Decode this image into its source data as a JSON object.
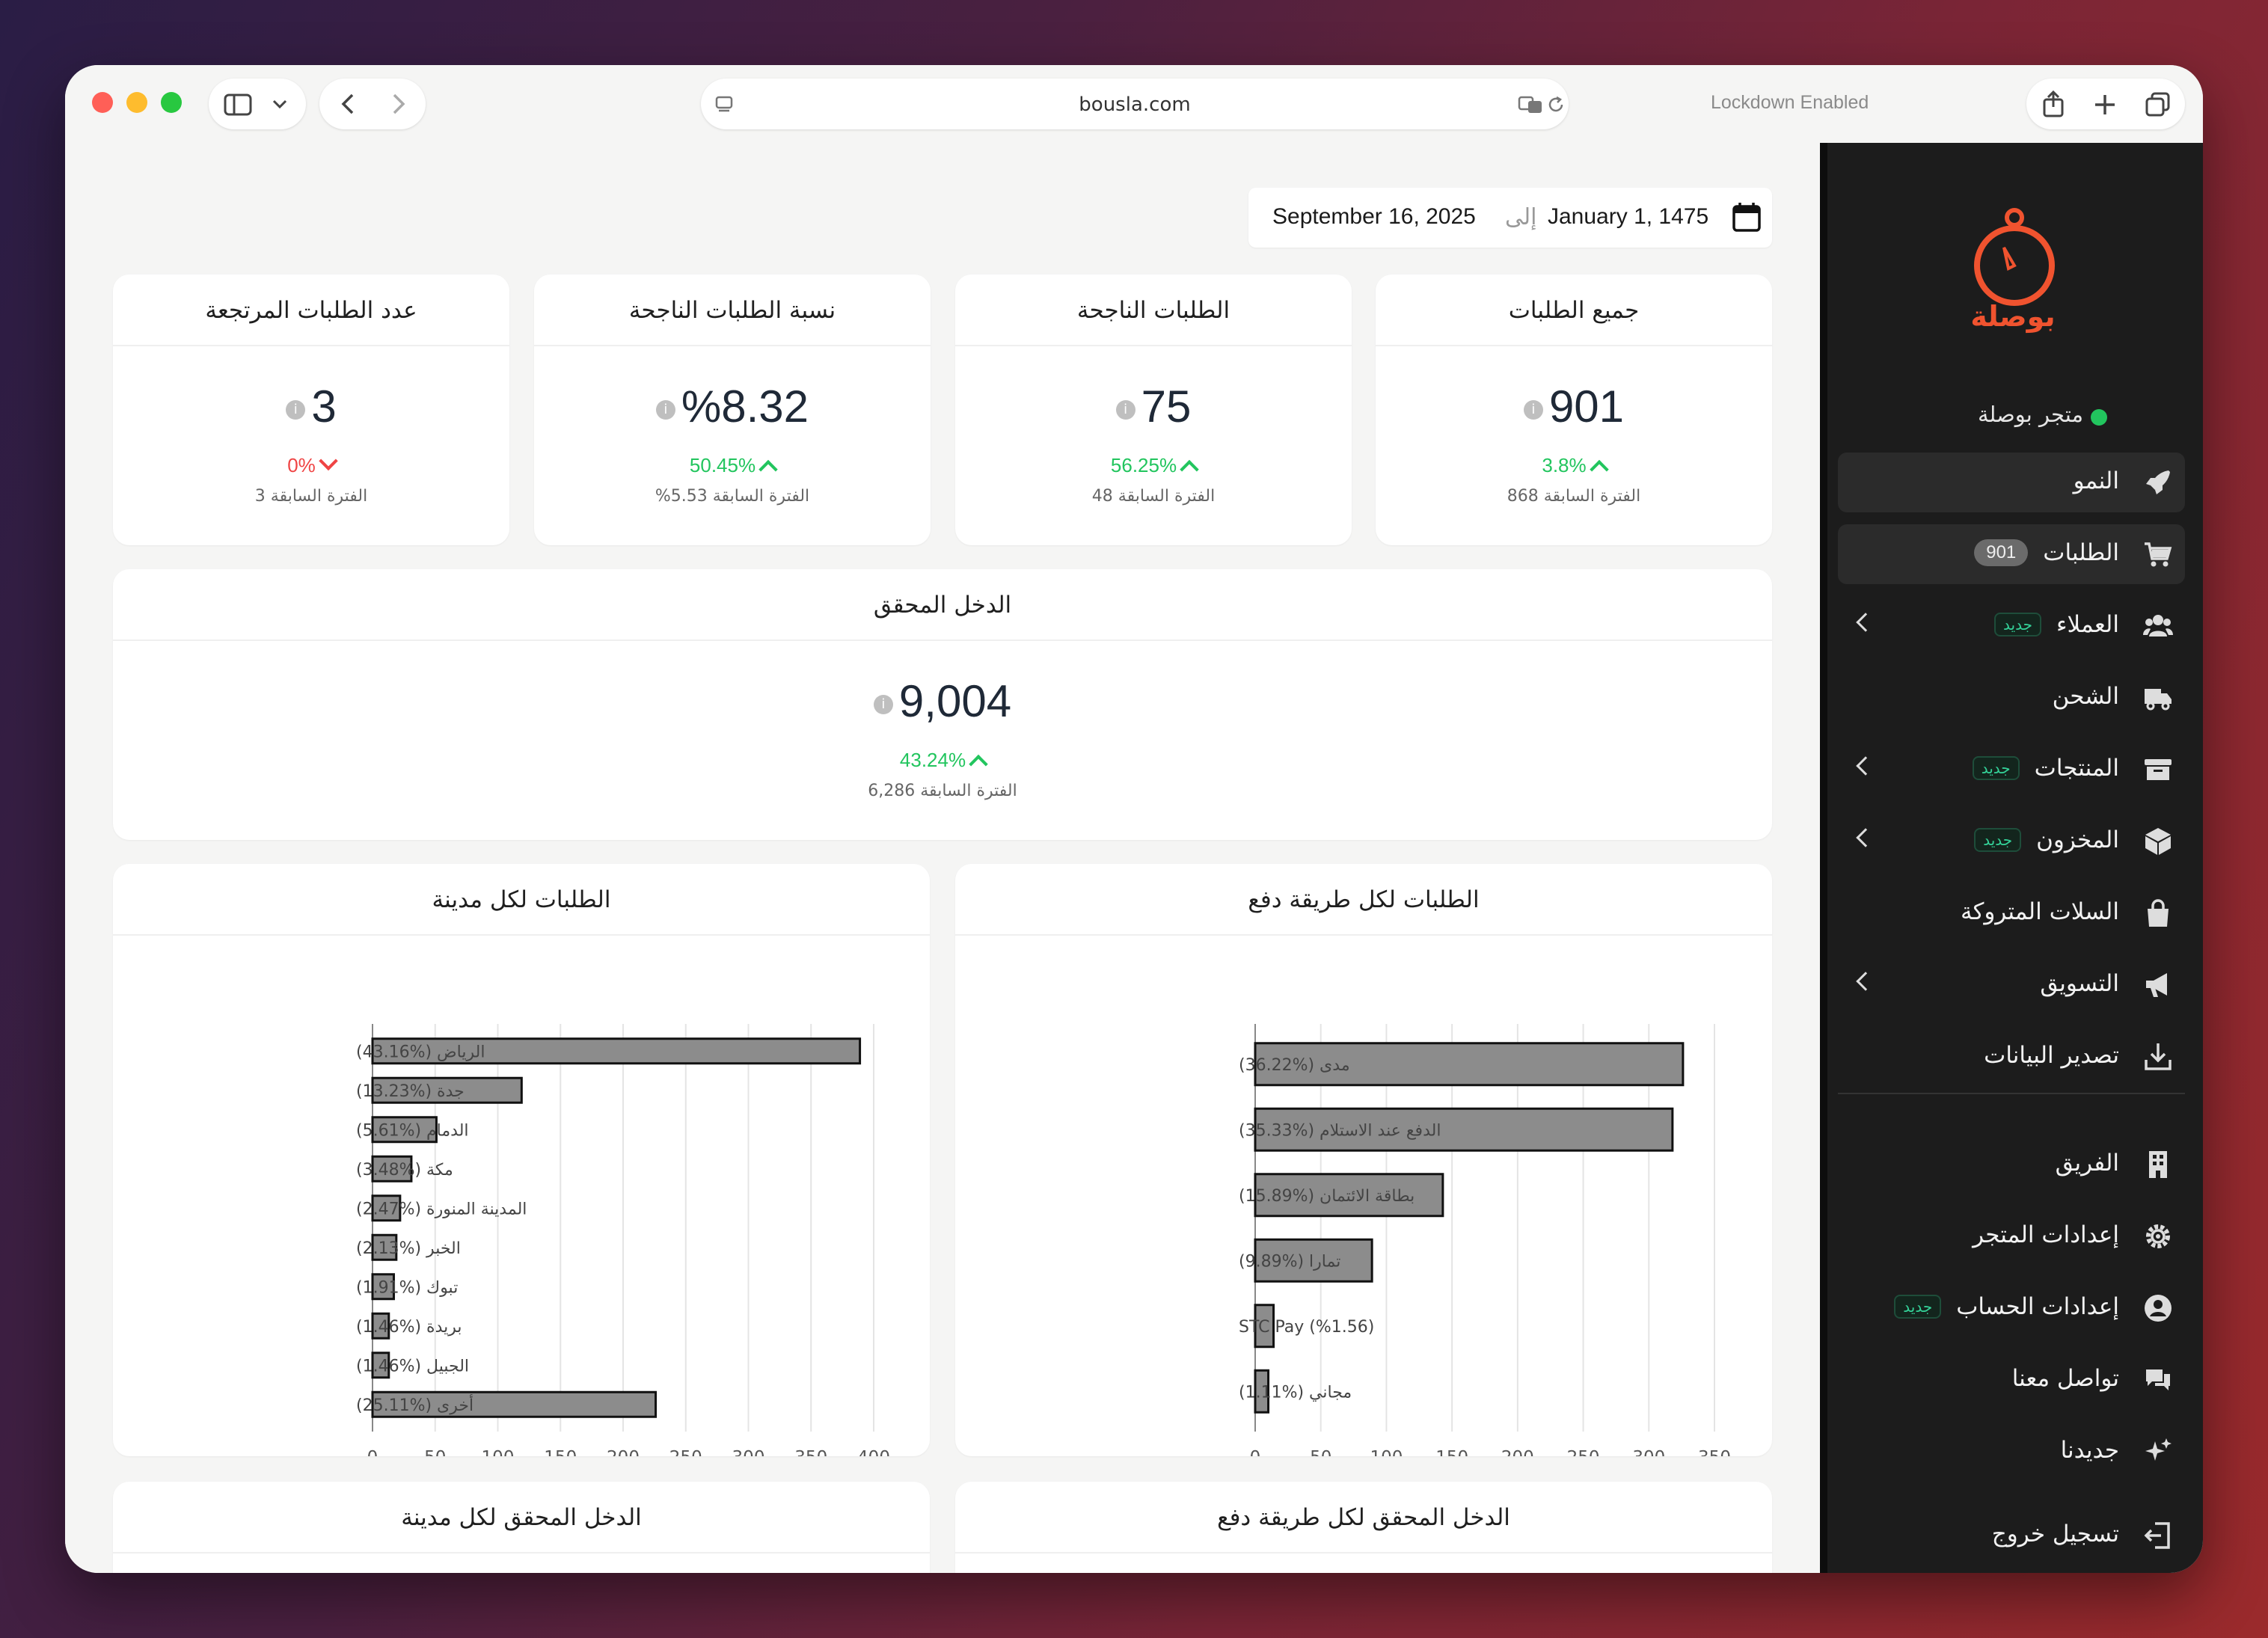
{
  "browser": {
    "url": "bousla.com",
    "lockdown": "Lockdown Enabled"
  },
  "date_range": {
    "start": "January 1, 1475",
    "to": "إلى",
    "end": "September 16, 2025"
  },
  "stats": [
    {
      "title": "جميع الطلبات",
      "value": "901",
      "change": "3.8%",
      "direction": "up",
      "previous": "868 الفترة السابقة"
    },
    {
      "title": "الطلبات الناجحة",
      "value": "75",
      "change": "56.25%",
      "direction": "up",
      "previous": "48 الفترة السابقة"
    },
    {
      "title": "نسبة الطلبات الناجحة",
      "value": "%8.32",
      "change": "50.45%",
      "direction": "up",
      "previous": "%5.53 الفترة السابقة"
    },
    {
      "title": "عدد الطلبات المرتجعة",
      "value": "3",
      "change": "0%",
      "direction": "down",
      "previous": "3 الفترة السابقة"
    }
  ],
  "revenue": {
    "title": "الدخل المحقق",
    "value": "9,004",
    "change": "43.24%",
    "previous": "6,286 الفترة السابقة"
  },
  "charts_titles": {
    "payment": "الطلبات لكل طريقة دفع",
    "city": "الطلبات لكل مدينة",
    "payment_revenue": "الدخل المحقق لكل طريقة دفع",
    "city_revenue": "الدخل المحقق لكل مدينة"
  },
  "chart_data": [
    {
      "type": "bar",
      "orientation": "horizontal",
      "title": "الطلبات لكل طريقة دفع",
      "categories": [
        "مدى (%36.22)",
        "الدفع عند الاستلام (%35.33)",
        "بطاقة الائتمان (%15.89)",
        "تمارا (%9.89)",
        "STC Pay (%1.56)",
        "مجاني (%1.11)"
      ],
      "values": [
        326,
        318,
        143,
        89,
        14,
        10
      ],
      "xlim": [
        0,
        350
      ],
      "ticks": [
        "0",
        "50",
        "100",
        "150",
        "200",
        "250",
        "300",
        "350"
      ],
      "bar_color": "#8c8c8c"
    },
    {
      "type": "bar",
      "orientation": "horizontal",
      "title": "الطلبات لكل مدينة",
      "categories": [
        "الرياض (%43.16)",
        "جدة (%13.23)",
        "الدمام (%5.61)",
        "مكة (%3.48)",
        "المدينة المنورة (%2.47)",
        "الخبر (%2.13)",
        "تبوك (%1.91)",
        "بريدة (%1.46)",
        "الجبيل (%1.46)",
        "أخرى (%25.11)"
      ],
      "values": [
        389,
        119,
        51,
        31,
        22,
        19,
        17,
        13,
        13,
        226
      ],
      "xlim": [
        0,
        400
      ],
      "ticks": [
        "0",
        "50",
        "100",
        "150",
        "200",
        "250",
        "300",
        "350",
        "400"
      ],
      "bar_color": "#8c8c8c"
    }
  ],
  "sidebar": {
    "brand": "بوصلة",
    "brand_color": "#f0532f",
    "store_name": "متجر بوصلة",
    "items": [
      {
        "label": "النمو",
        "icon": "rocket-icon",
        "active": true
      },
      {
        "label": "الطلبات",
        "icon": "cart-icon",
        "active": true,
        "count": "901"
      },
      {
        "label": "العملاء",
        "icon": "users-icon",
        "badge": "جديد",
        "chevron": true
      },
      {
        "label": "الشحن",
        "icon": "truck-icon"
      },
      {
        "label": "المنتجات",
        "icon": "archive-icon",
        "badge": "جديد",
        "chevron": true
      },
      {
        "label": "المخزون",
        "icon": "box-icon",
        "badge": "جديد",
        "chevron": true
      },
      {
        "label": "السلات المتروكة",
        "icon": "bag-icon"
      },
      {
        "label": "التسويق",
        "icon": "megaphone-icon",
        "chevron": true
      },
      {
        "label": "تصدير البيانات",
        "icon": "download-icon"
      },
      {
        "label": "الفريق",
        "icon": "building-icon"
      },
      {
        "label": "إعدادات المتجر",
        "icon": "gear-icon"
      },
      {
        "label": "إعدادات الحساب",
        "icon": "user-circle-icon",
        "badge": "جديد"
      },
      {
        "label": "تواصل معنا",
        "icon": "chat-icon"
      },
      {
        "label": "جديدنا",
        "icon": "sparkles-icon"
      },
      {
        "label": "تسجيل خروج",
        "icon": "logout-icon"
      }
    ]
  }
}
